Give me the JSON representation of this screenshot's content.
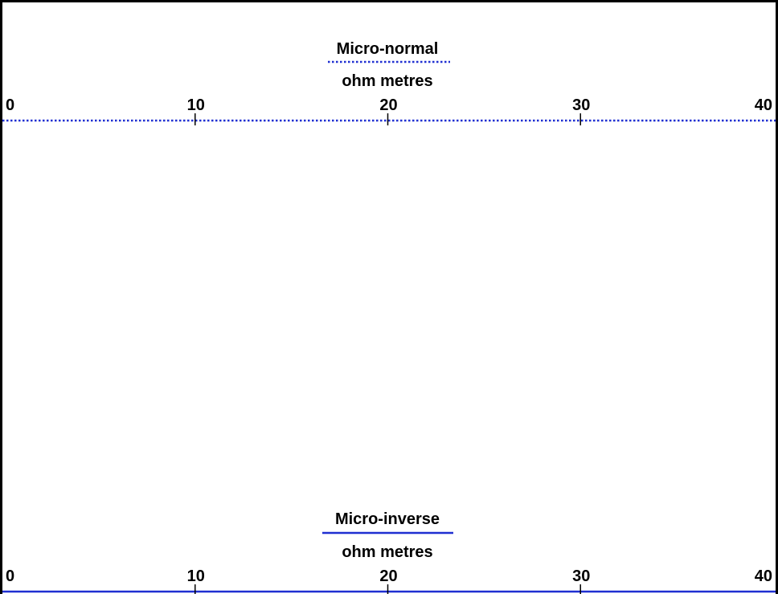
{
  "chart_data": [
    {
      "type": "line",
      "title": "Micro-normal",
      "xlabel": "ohm metres",
      "xlim": [
        0,
        40
      ],
      "ticks": [
        "0",
        "10",
        "20",
        "30",
        "40"
      ],
      "tick_values": [
        0,
        10,
        20,
        30,
        40
      ],
      "line_style": "dotted",
      "color": "#1f2fd1",
      "series": []
    },
    {
      "type": "line",
      "title": "Micro-inverse",
      "xlabel": "ohm metres",
      "xlim": [
        0,
        40
      ],
      "ticks": [
        "0",
        "10",
        "20",
        "30",
        "40"
      ],
      "tick_values": [
        0,
        10,
        20,
        30,
        40
      ],
      "line_style": "solid",
      "color": "#1f2fd1",
      "series": []
    }
  ]
}
